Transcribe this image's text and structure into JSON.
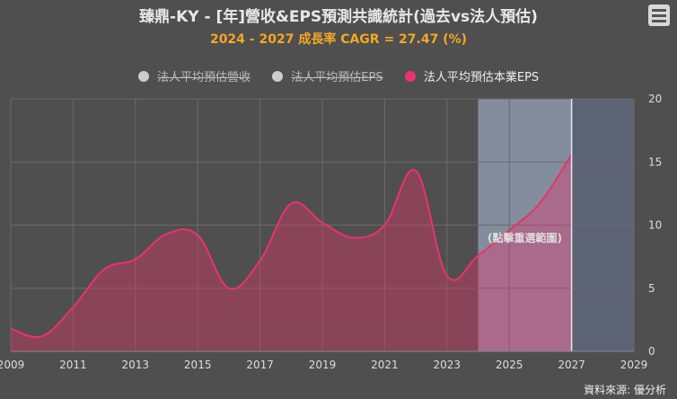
{
  "title": "臻鼎-KY - [年]營收&EPS預測共識統計(過去vs法人預估)",
  "subtitle": "2024 - 2027 成長率 CAGR = 27.47 (%)",
  "source": "資料來源: 優分析",
  "legend": [
    {
      "label": "法人平均預估營收",
      "color": "#cccccc",
      "state": "hidden"
    },
    {
      "label": "法人平均預估EPS",
      "color": "#cccccc",
      "state": "hidden"
    },
    {
      "label": "法人平均預估本業EPS",
      "color": "#e8336c",
      "state": "active"
    }
  ],
  "zoom_label": "(點擊重選範圍)",
  "chart_data": {
    "type": "area",
    "series": [
      {
        "name": "法人平均預估本業EPS",
        "color": "#e8336c",
        "x": [
          2009,
          2010,
          2011,
          2012,
          2013,
          2014,
          2015,
          2016,
          2017,
          2018,
          2019,
          2020,
          2021,
          2022,
          2023,
          2024,
          2025,
          2026,
          2027
        ],
        "values": [
          1.8,
          1.2,
          3.5,
          6.5,
          7.3,
          9.3,
          9.2,
          5.0,
          7.2,
          11.7,
          10.2,
          9.0,
          10.0,
          14.3,
          6.0,
          7.6,
          9.6,
          11.8,
          15.6
        ]
      }
    ],
    "xlim": [
      2009,
      2029
    ],
    "ylim": [
      0,
      20
    ],
    "xticks": [
      2009,
      2011,
      2013,
      2015,
      2017,
      2019,
      2021,
      2023,
      2025,
      2027,
      2029
    ],
    "yticks": [
      0,
      5,
      10,
      15,
      20
    ],
    "highlight_ranges": [
      {
        "from": 2024,
        "to": 2027,
        "color": "#8a93a6"
      },
      {
        "from": 2027,
        "to": 2029,
        "color": "#5d6579"
      }
    ],
    "grid": true
  }
}
